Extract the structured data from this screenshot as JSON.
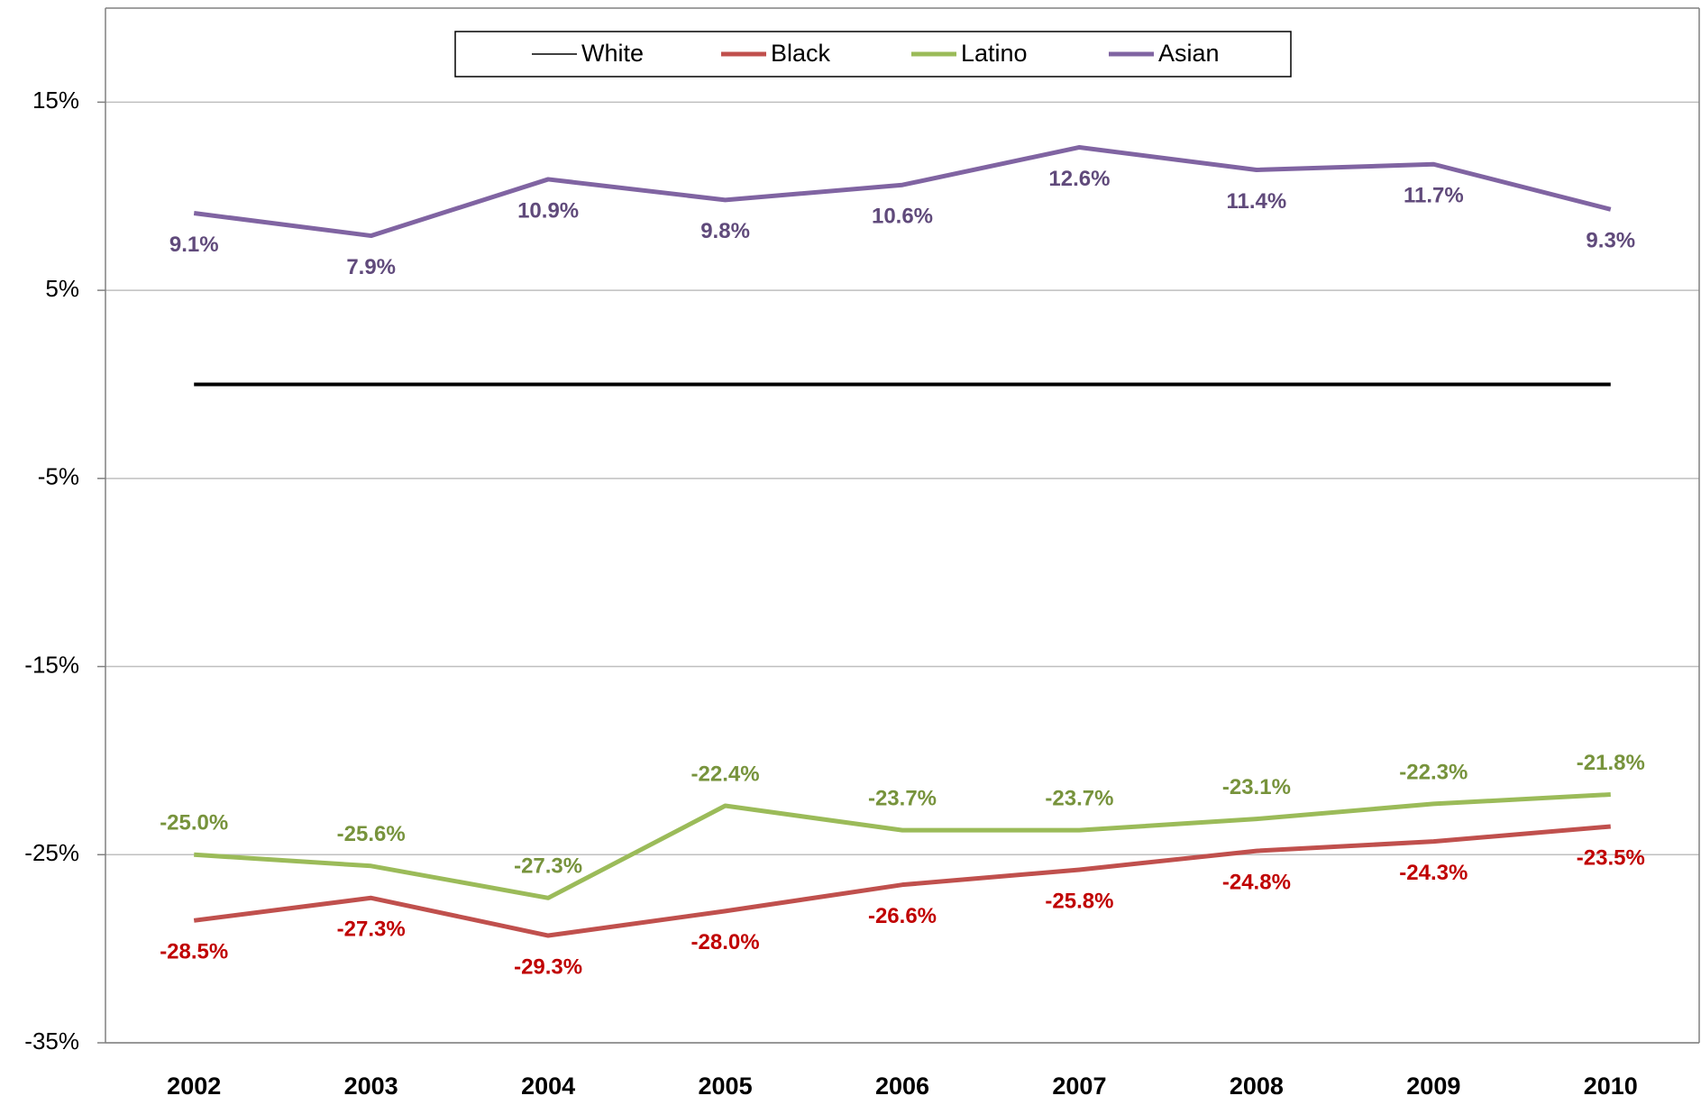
{
  "chart_data": {
    "type": "line",
    "categories": [
      "2002",
      "2003",
      "2004",
      "2005",
      "2006",
      "2007",
      "2008",
      "2009",
      "2010"
    ],
    "series": [
      {
        "name": "White",
        "color": "#000000",
        "values": [
          0,
          0,
          0,
          0,
          0,
          0,
          0,
          0,
          0
        ]
      },
      {
        "name": "Black",
        "color": "#c0504d",
        "label_color": "#c00000",
        "label_position": "below",
        "values": [
          -28.5,
          -27.3,
          -29.3,
          -28.0,
          -26.6,
          -25.8,
          -24.8,
          -24.3,
          -23.5
        ],
        "value_labels": [
          "-28.5%",
          "-27.3%",
          "-29.3%",
          "-28.0%",
          "-26.6%",
          "-25.8%",
          "-24.8%",
          "-24.3%",
          "-23.5%"
        ]
      },
      {
        "name": "Latino",
        "color": "#9bbb59",
        "label_color": "#77933c",
        "label_position": "above",
        "values": [
          -25.0,
          -25.6,
          -27.3,
          -22.4,
          -23.7,
          -23.7,
          -23.1,
          -22.3,
          -21.8
        ],
        "value_labels": [
          "-25.0%",
          "-25.6%",
          "-27.3%",
          "-22.4%",
          "-23.7%",
          "-23.7%",
          "-23.1%",
          "-22.3%",
          "-21.8%"
        ]
      },
      {
        "name": "Asian",
        "color": "#8064a2",
        "label_color": "#604a7b",
        "label_position": "below",
        "values": [
          9.1,
          7.9,
          10.9,
          9.8,
          10.6,
          12.6,
          11.4,
          11.7,
          9.3
        ],
        "value_labels": [
          "9.1%",
          "7.9%",
          "10.9%",
          "9.8%",
          "10.6%",
          "12.6%",
          "11.4%",
          "11.7%",
          "9.3%"
        ]
      }
    ],
    "ylim": [
      -35,
      20
    ],
    "yticks": [
      {
        "value": 15,
        "label": "15%"
      },
      {
        "value": 5,
        "label": "5%"
      },
      {
        "value": -5,
        "label": "-5%"
      },
      {
        "value": -15,
        "label": "-15%"
      },
      {
        "value": -25,
        "label": "-25%"
      },
      {
        "value": -35,
        "label": "-35%"
      }
    ],
    "grid": true,
    "legend": "top"
  }
}
